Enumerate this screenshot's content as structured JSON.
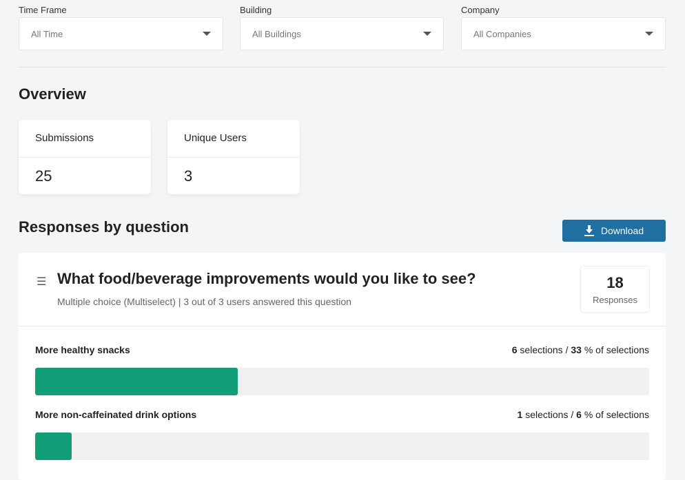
{
  "filters": [
    {
      "label": "Time Frame",
      "value": "All Time"
    },
    {
      "label": "Building",
      "value": "All Buildings"
    },
    {
      "label": "Company",
      "value": "All Companies"
    }
  ],
  "overview": {
    "title": "Overview",
    "cards": [
      {
        "label": "Submissions",
        "value": "25"
      },
      {
        "label": "Unique Users",
        "value": "3"
      }
    ]
  },
  "responses": {
    "title": "Responses by question",
    "download_label": "Download",
    "question": {
      "icon": "list-icon",
      "title": "What food/beverage improvements would you like to see?",
      "subtitle": "Multiple choice (Multiselect) | 3 out of 3 users answered this question",
      "count": "18",
      "count_label": "Responses",
      "options": [
        {
          "label": "More healthy snacks",
          "selections": "6",
          "selections_text": " selections / ",
          "percent": "33",
          "percent_text": " % of selections",
          "fill_percent": 33
        },
        {
          "label": "More non-caffeinated drink options",
          "selections": "1",
          "selections_text": " selections / ",
          "percent": "6",
          "percent_text": " % of selections",
          "fill_percent": 6
        }
      ]
    }
  },
  "colors": {
    "accent": "#1f6fa3",
    "bar_fill": "#129e76"
  }
}
